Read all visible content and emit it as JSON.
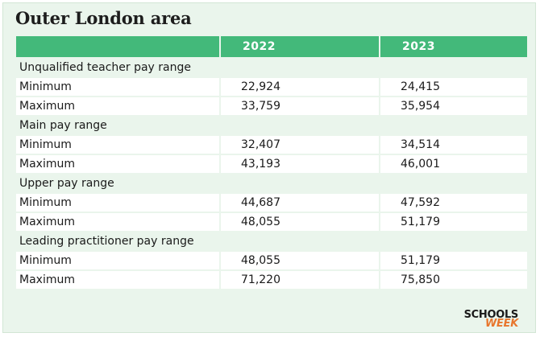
{
  "title": "Outer London area",
  "columns": [
    "",
    "2022",
    "2023"
  ],
  "sections": [
    {
      "heading": "Unqualified teacher pay range",
      "rows": [
        {
          "label": "Minimum",
          "y2022": "22,924",
          "y2023": "24,415"
        },
        {
          "label": "Maximum",
          "y2022": "33,759",
          "y2023": "35,954"
        }
      ]
    },
    {
      "heading": "Main pay range",
      "rows": [
        {
          "label": "Minimum",
          "y2022": "32,407",
          "y2023": "34,514"
        },
        {
          "label": "Maximum",
          "y2022": "43,193",
          "y2023": "46,001"
        }
      ]
    },
    {
      "heading": "Upper pay range",
      "rows": [
        {
          "label": "Minimum",
          "y2022": "44,687",
          "y2023": "47,592"
        },
        {
          "label": "Maximum",
          "y2022": "48,055",
          "y2023": "51,179"
        }
      ]
    },
    {
      "heading": "Leading practitioner pay range",
      "rows": [
        {
          "label": "Minimum",
          "y2022": "48,055",
          "y2023": "51,179"
        },
        {
          "label": "Maximum",
          "y2022": "71,220",
          "y2023": "75,850"
        }
      ]
    }
  ],
  "logo": {
    "line1": "SCHOOLS",
    "line2": "WEEK"
  },
  "colors": {
    "header_green": "#43b97a",
    "background": "#eaf5ec",
    "logo_orange": "#e8762d"
  }
}
